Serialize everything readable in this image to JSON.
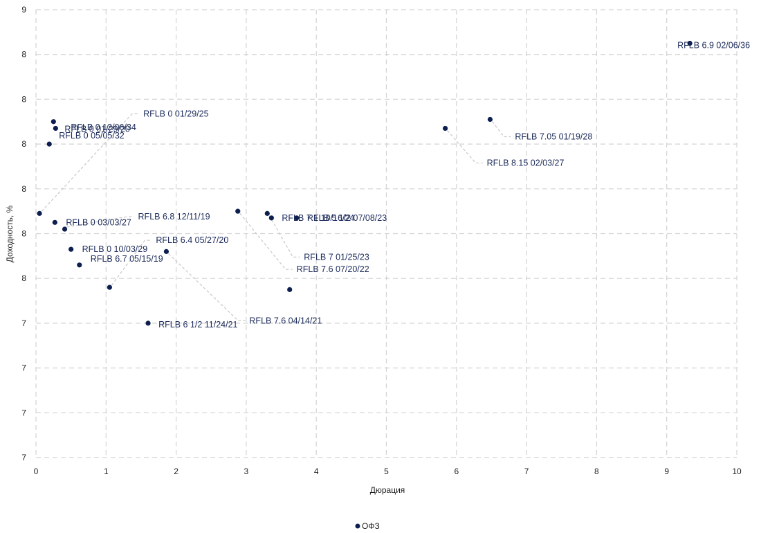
{
  "chart_data": {
    "type": "scatter",
    "xlabel": "Дюрация",
    "ylabel": "Доходность, %",
    "xlim": [
      0,
      10
    ],
    "ylim": [
      7.0,
      9.0
    ],
    "x_ticks": [
      "0",
      "1",
      "2",
      "3",
      "4",
      "5",
      "6",
      "7",
      "8",
      "9",
      "10"
    ],
    "y_tick_values": [
      7.0,
      7.2,
      7.4,
      7.6,
      7.8,
      8.0,
      8.2,
      8.4,
      8.6,
      8.8,
      9.0
    ],
    "y_tick_labels": [
      "7",
      "7",
      "7",
      "7",
      "8",
      "8",
      "8",
      "8",
      "8",
      "8",
      "9"
    ],
    "grid": true,
    "legend_position": "bottom",
    "series": [
      {
        "name": "ОФЗ",
        "color": "#0d1f4f",
        "points": [
          {
            "x": 0.05,
            "y": 8.09,
            "label": "RFLB 0 01/29/25"
          },
          {
            "x": 0.25,
            "y": 8.5,
            "label": "RFLB 0 12/06/34"
          },
          {
            "x": 0.19,
            "y": 8.4,
            "label": "RFLB 0 05/05/32"
          },
          {
            "x": 0.28,
            "y": 8.47,
            "label": "RFLB 0 01/29/20"
          },
          {
            "x": 0.27,
            "y": 8.05,
            "label": "RFLB 0 03/03/27"
          },
          {
            "x": 0.41,
            "y": 8.02,
            "label": "RFLB 6.8 12/11/19"
          },
          {
            "x": 0.5,
            "y": 7.93,
            "label": "RFLB 0 10/03/29"
          },
          {
            "x": 0.62,
            "y": 7.86,
            "label": "RFLB 6.7 05/15/19"
          },
          {
            "x": 1.05,
            "y": 7.76,
            "label": "RFLB 6.4 05/27/20"
          },
          {
            "x": 1.6,
            "y": 7.6,
            "label": "RFLB 6 1/2 11/24/21"
          },
          {
            "x": 1.86,
            "y": 7.92,
            "label": "RFLB 7.6 04/14/21"
          },
          {
            "x": 2.88,
            "y": 8.1,
            "label": "RFLB 7.6 07/20/22"
          },
          {
            "x": 3.3,
            "y": 8.09,
            "label": "RFLB 7 01/25/23"
          },
          {
            "x": 3.36,
            "y": 8.07,
            "label": "RFLB 7.1 10/16/24"
          },
          {
            "x": 3.72,
            "y": 8.07,
            "label": "RFLB 5 1/2 07/08/23"
          },
          {
            "x": 3.62,
            "y": 7.75,
            "label": ""
          },
          {
            "x": 5.84,
            "y": 8.47,
            "label": "RFLB 8.15 02/03/27"
          },
          {
            "x": 6.48,
            "y": 8.51,
            "label": "RFLB 7.05 01/19/28"
          },
          {
            "x": 9.33,
            "y": 8.85,
            "label": "RFLB 6.9 02/06/36"
          }
        ]
      }
    ]
  }
}
